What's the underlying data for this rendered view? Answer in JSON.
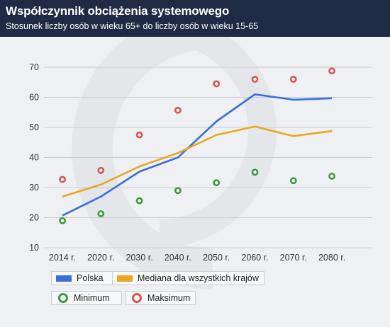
{
  "header": {
    "title": "Współczynnik obciążenia systemowego",
    "subtitle": "Stosunek liczby osób w wieku 65+ do liczby osób w wieku 15-65"
  },
  "colors": {
    "header_bg": "#1f2a44",
    "polska": "#3b6fd8",
    "mediana": "#e8a820",
    "minimum": "#3a9a3a",
    "maksimum": "#d9534f",
    "grid": "#c8ccd2"
  },
  "chart_data": {
    "type": "line",
    "title": "Współczynnik obciążenia systemowego",
    "subtitle": "Stosunek liczby osób w wieku 65+ do liczby osób w wieku 15-65",
    "categories": [
      "2014 r.",
      "2020 r.",
      "2030 r.",
      "2040 r.",
      "2050 r.",
      "2060 r.",
      "2070 r.",
      "2080 r."
    ],
    "ylim": [
      10,
      70
    ],
    "yticks": [
      10,
      20,
      30,
      40,
      50,
      60,
      70
    ],
    "grid": "horizontal",
    "legend_position": "bottom-left",
    "series": [
      {
        "name": "Polska",
        "kind": "line",
        "values": [
          20.7,
          27,
          35.3,
          40,
          52,
          61,
          59.2,
          59.7
        ]
      },
      {
        "name": "Mediana dla wszystkich krajów",
        "kind": "line",
        "values": [
          27,
          31,
          37,
          41.5,
          47.5,
          50.3,
          47.1,
          48.8
        ]
      },
      {
        "name": "Minimum",
        "kind": "marker",
        "values": [
          19,
          21.3,
          25.6,
          29,
          31.6,
          35.1,
          32.3,
          33.8
        ]
      },
      {
        "name": "Maksimum",
        "kind": "marker",
        "values": [
          32.7,
          35.7,
          47.5,
          55.7,
          64.5,
          66,
          66,
          68.8
        ]
      }
    ]
  }
}
